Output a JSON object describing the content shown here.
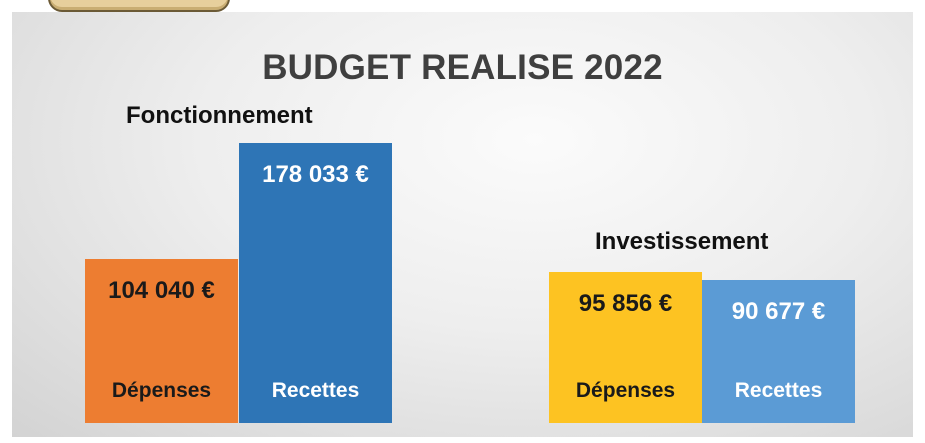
{
  "chart_data": {
    "type": "bar",
    "title": "BUDGET REALISE 2022",
    "currency": "€",
    "groups": [
      {
        "name": "Fonctionnement",
        "bars": [
          {
            "category": "Dépenses",
            "value": 104040,
            "value_label": "104 040 €",
            "color": "#ed7d31",
            "text_color": "#1a1a1a"
          },
          {
            "category": "Recettes",
            "value": 178033,
            "value_label": "178 033 €",
            "color": "#2e75b6",
            "text_color": "#ffffff"
          }
        ]
      },
      {
        "name": "Investissement",
        "bars": [
          {
            "category": "Dépenses",
            "value": 95856,
            "value_label": "95 856 €",
            "color": "#fdc322",
            "text_color": "#1a1a1a"
          },
          {
            "category": "Recettes",
            "value": 90677,
            "value_label": "90 677 €",
            "color": "#5b9bd5",
            "text_color": "#ffffff"
          }
        ]
      }
    ]
  }
}
